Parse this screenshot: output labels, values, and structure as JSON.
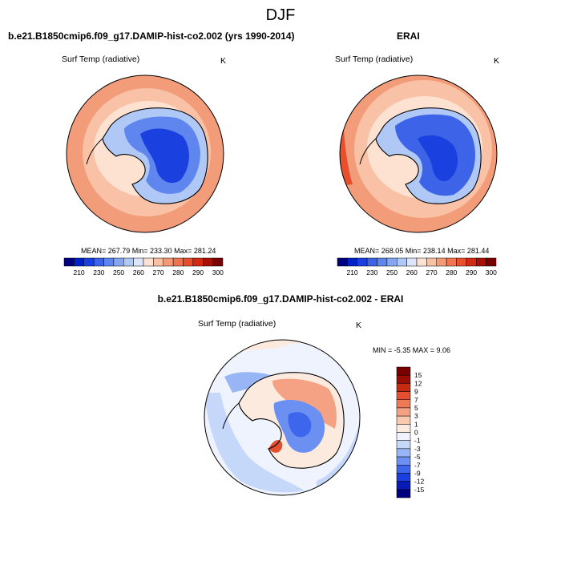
{
  "figure": {
    "title": "DJF",
    "panels": {
      "model": {
        "title": "b.e21.B1850cmip6.f09_g17.DAMIP-hist-co2.002 (yrs 1990-2014)",
        "variable": "Surf Temp (radiative)",
        "units": "K",
        "stats": "MEAN= 267.79  Min= 233.30  Max= 281.24"
      },
      "obs": {
        "title": "ERAI",
        "variable": "Surf Temp (radiative)",
        "units": "K",
        "stats": "MEAN= 268.05  Min= 238.14  Max= 281.44"
      },
      "diff": {
        "title": "b.e21.B1850cmip6.f09_g17.DAMIP-hist-co2.002 - ERAI",
        "variable": "Surf Temp (radiative)",
        "units": "K",
        "stats": "MIN =  -5.35 MAX =   9.06"
      }
    },
    "abs_colorbar": {
      "colors": [
        "#00007f",
        "#0021c8",
        "#1a40e0",
        "#3c63e8",
        "#5f86ee",
        "#86a6f2",
        "#b0c8f6",
        "#dce6fa",
        "#fde2d2",
        "#f9c0a4",
        "#f59a77",
        "#ef7550",
        "#e84f2c",
        "#d42a14",
        "#a80f06",
        "#7a0000"
      ],
      "labels": [
        "210",
        "230",
        "250",
        "260",
        "270",
        "280",
        "290",
        "300"
      ]
    },
    "diff_colorbar": {
      "colors": [
        "#00007f",
        "#0a1ab8",
        "#1a3ee0",
        "#3e66ec",
        "#6b90f2",
        "#98b5f6",
        "#c6d8fa",
        "#eef3fd",
        "#fdeadf",
        "#f9c9b0",
        "#f4a283",
        "#ee7a58",
        "#e34f30",
        "#c62b12",
        "#9a0d04",
        "#7a0000"
      ],
      "labels": [
        "15",
        "12",
        "9",
        "7",
        "5",
        "3",
        "1",
        "0",
        "-1",
        "-3",
        "-5",
        "-7",
        "-9",
        "-12",
        "-15"
      ]
    }
  }
}
